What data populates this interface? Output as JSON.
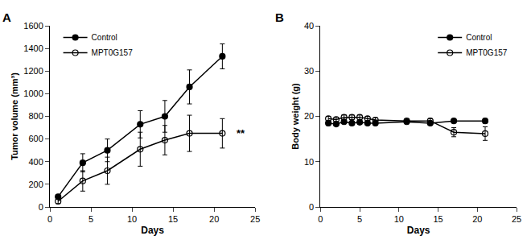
{
  "chart_data": [
    {
      "type": "line",
      "title": "A",
      "x_label": "Days",
      "y_label": "Tumor volume (mm³)",
      "x": [
        1,
        4,
        7,
        11,
        14,
        17,
        21
      ],
      "series": [
        {
          "name": "Control",
          "color": "#000000",
          "marker": "filled",
          "values": [
            90,
            390,
            500,
            730,
            800,
            1060,
            1330
          ],
          "yerr": [
            20,
            80,
            100,
            120,
            140,
            150,
            110
          ]
        },
        {
          "name": "MPT0G157",
          "color": "#000000",
          "marker": "open",
          "values": [
            50,
            230,
            320,
            510,
            590,
            650,
            650
          ],
          "yerr": [
            20,
            90,
            120,
            150,
            130,
            160,
            130
          ]
        }
      ],
      "xlim": [
        0,
        25
      ],
      "ylim": [
        0,
        1600
      ],
      "xticks": [
        0,
        5,
        10,
        15,
        20,
        25
      ],
      "yticks": [
        0,
        200,
        400,
        600,
        800,
        1000,
        1200,
        1400,
        1600
      ],
      "grid": false,
      "legend": "upper left",
      "annotations": [
        {
          "text": "**",
          "x": 22.5,
          "y": 650
        }
      ]
    },
    {
      "type": "line",
      "title": "B",
      "x_label": "Days",
      "y_label": "Body weight (g)",
      "x": [
        1,
        2,
        3,
        4,
        5,
        6,
        7,
        11,
        14,
        17,
        21
      ],
      "series": [
        {
          "name": "Control",
          "color": "#000000",
          "marker": "filled",
          "values": [
            18.5,
            18.3,
            18.8,
            18.5,
            18.7,
            18.5,
            18.5,
            18.8,
            18.5,
            19.0,
            19.0
          ],
          "yerr": [
            0.5,
            0.4,
            0.4,
            0.4,
            0.4,
            0.4,
            0.4,
            0.4,
            0.4,
            0.4,
            0.5
          ]
        },
        {
          "name": "MPT0G157",
          "color": "#000000",
          "marker": "open",
          "values": [
            19.5,
            19.3,
            19.8,
            19.8,
            19.8,
            19.5,
            19.2,
            19.0,
            19.0,
            16.5,
            16.2
          ],
          "yerr": [
            0.5,
            0.5,
            0.5,
            0.5,
            0.5,
            0.5,
            0.5,
            0.4,
            0.5,
            1.0,
            1.5
          ]
        }
      ],
      "xlim": [
        0,
        25
      ],
      "ylim": [
        0,
        40
      ],
      "xticks": [
        0,
        5,
        10,
        15,
        20,
        25
      ],
      "yticks": [
        0,
        10,
        20,
        30,
        40
      ],
      "grid": false,
      "legend": "upper right"
    }
  ]
}
